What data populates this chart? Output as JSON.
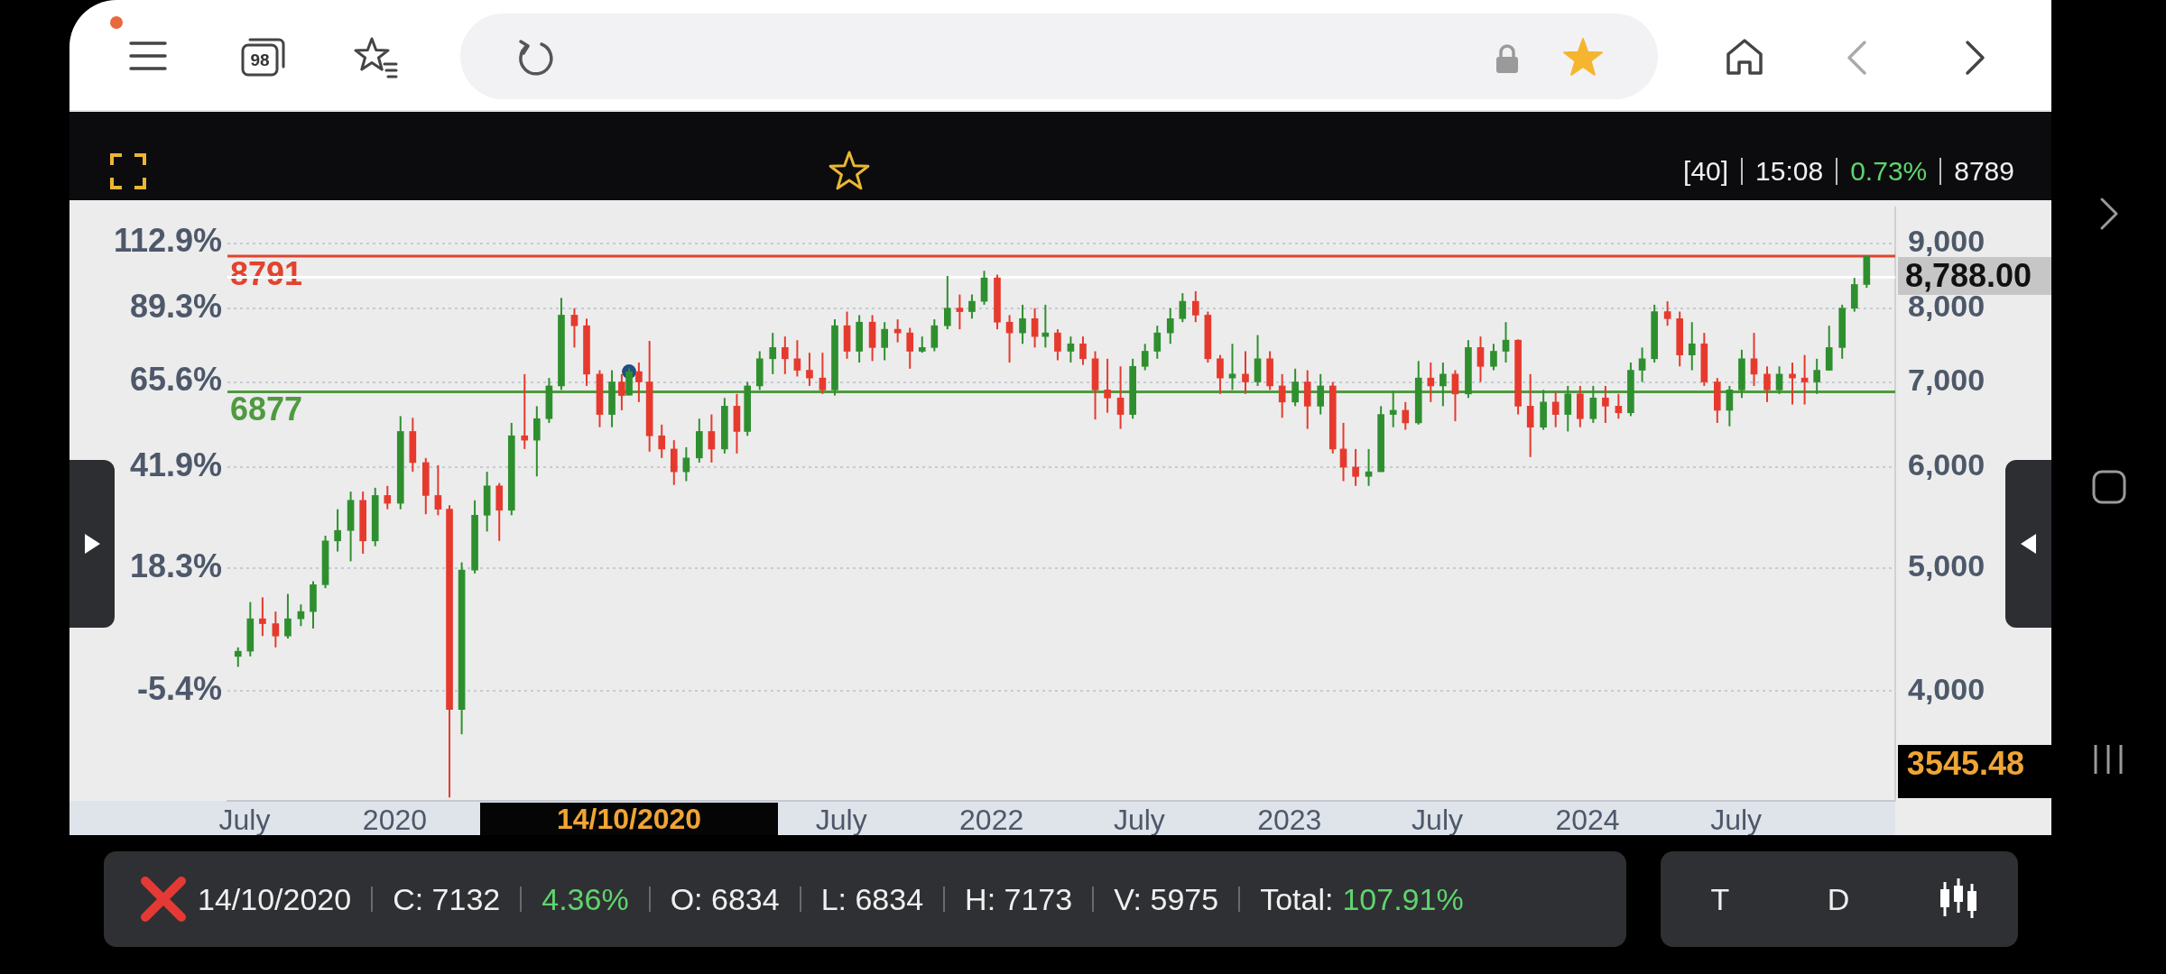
{
  "chart_data": {
    "type": "candlestick",
    "x": [
      "2019-06-23",
      "2019-07-08",
      "2019-07-23",
      "2019-08-08",
      "2019-08-23",
      "2019-09-08",
      "2019-09-23",
      "2019-10-08",
      "2019-10-23",
      "2019-11-08",
      "2019-11-23",
      "2019-12-08",
      "2019-12-23",
      "2020-01-08",
      "2020-01-23",
      "2020-02-08",
      "2020-02-23",
      "2020-03-08",
      "2020-03-23",
      "2020-04-08",
      "2020-04-23",
      "2020-05-08",
      "2020-05-23",
      "2020-06-08",
      "2020-06-23",
      "2020-07-08",
      "2020-07-23",
      "2020-08-08",
      "2020-08-23",
      "2020-09-08",
      "2020-09-23",
      "2020-10-05",
      "2020-10-14",
      "2020-10-26",
      "2020-11-08",
      "2020-11-23",
      "2020-12-08",
      "2020-12-23",
      "2021-01-08",
      "2021-01-23",
      "2021-02-08",
      "2021-02-23",
      "2021-03-08",
      "2021-03-23",
      "2021-04-08",
      "2021-04-23",
      "2021-05-08",
      "2021-05-23",
      "2021-06-08",
      "2021-06-23",
      "2021-07-08",
      "2021-07-23",
      "2021-08-08",
      "2021-08-23",
      "2021-09-08",
      "2021-09-23",
      "2021-10-08",
      "2021-10-23",
      "2021-11-08",
      "2021-11-23",
      "2021-12-08",
      "2021-12-23",
      "2022-01-08",
      "2022-01-23",
      "2022-02-08",
      "2022-02-23",
      "2022-03-08",
      "2022-03-23",
      "2022-04-08",
      "2022-04-23",
      "2022-05-08",
      "2022-05-23",
      "2022-06-08",
      "2022-06-23",
      "2022-07-08",
      "2022-07-23",
      "2022-08-08",
      "2022-08-23",
      "2022-09-08",
      "2022-09-23",
      "2022-10-08",
      "2022-10-23",
      "2022-11-08",
      "2022-11-23",
      "2022-12-08",
      "2022-12-23",
      "2023-01-08",
      "2023-01-23",
      "2023-02-08",
      "2023-02-23",
      "2023-03-08",
      "2023-03-23",
      "2023-04-08",
      "2023-04-23",
      "2023-05-08",
      "2023-05-23",
      "2023-06-08",
      "2023-06-23",
      "2023-07-08",
      "2023-07-23",
      "2023-08-08",
      "2023-08-23",
      "2023-09-08",
      "2023-09-23",
      "2023-10-08",
      "2023-10-23",
      "2023-11-08",
      "2023-11-23",
      "2023-12-08",
      "2023-12-23",
      "2024-01-08",
      "2024-01-23",
      "2024-02-08",
      "2024-02-23",
      "2024-03-08",
      "2024-03-23",
      "2024-04-08",
      "2024-04-23",
      "2024-05-08",
      "2024-05-23",
      "2024-06-08",
      "2024-06-23",
      "2024-07-08",
      "2024-07-23",
      "2024-08-08",
      "2024-08-23",
      "2024-09-08",
      "2024-09-23",
      "2024-10-08",
      "2024-10-23",
      "2024-11-08",
      "2024-11-23",
      "2024-12-08"
    ],
    "ohlc": [
      [
        4260,
        4330,
        4180,
        4300
      ],
      [
        4300,
        4700,
        4260,
        4560
      ],
      [
        4560,
        4740,
        4420,
        4520
      ],
      [
        4520,
        4620,
        4330,
        4420
      ],
      [
        4420,
        4770,
        4400,
        4560
      ],
      [
        4560,
        4680,
        4500,
        4620
      ],
      [
        4620,
        4880,
        4480,
        4850
      ],
      [
        4850,
        5300,
        4820,
        5250
      ],
      [
        5250,
        5560,
        5150,
        5350
      ],
      [
        5350,
        5740,
        5060,
        5650
      ],
      [
        5650,
        5740,
        5130,
        5250
      ],
      [
        5250,
        5780,
        5200,
        5700
      ],
      [
        5700,
        5800,
        5560,
        5620
      ],
      [
        5620,
        6580,
        5560,
        6400
      ],
      [
        6400,
        6560,
        5950,
        6050
      ],
      [
        6050,
        6100,
        5510,
        5700
      ],
      [
        5700,
        6020,
        5500,
        5560
      ],
      [
        5560,
        5600,
        3300,
        3870
      ],
      [
        3870,
        5050,
        3700,
        4980
      ],
      [
        4980,
        5650,
        4950,
        5500
      ],
      [
        5500,
        5950,
        5340,
        5800
      ],
      [
        5800,
        5830,
        5250,
        5550
      ],
      [
        5550,
        6500,
        5500,
        6350
      ],
      [
        6350,
        7100,
        6200,
        6300
      ],
      [
        6300,
        6700,
        5900,
        6550
      ],
      [
        6550,
        7050,
        6500,
        6950
      ],
      [
        6950,
        8150,
        6900,
        7900
      ],
      [
        7900,
        8000,
        7450,
        7750
      ],
      [
        7750,
        7850,
        6950,
        7100
      ],
      [
        7100,
        7150,
        6450,
        6600
      ],
      [
        6600,
        7150,
        6450,
        7000
      ],
      [
        7000,
        7100,
        6650,
        6830
      ],
      [
        6834,
        7173,
        6834,
        7132
      ],
      [
        7132,
        7250,
        6750,
        7000
      ],
      [
        7000,
        7540,
        6170,
        6350
      ],
      [
        6350,
        6480,
        6100,
        6200
      ],
      [
        6200,
        6300,
        5810,
        5950
      ],
      [
        5950,
        6220,
        5850,
        6100
      ],
      [
        6100,
        6550,
        6050,
        6400
      ],
      [
        6400,
        6600,
        6050,
        6200
      ],
      [
        6200,
        6800,
        6150,
        6700
      ],
      [
        6700,
        6850,
        6150,
        6400
      ],
      [
        6400,
        7000,
        6350,
        6950
      ],
      [
        6950,
        7400,
        6900,
        7300
      ],
      [
        7300,
        7650,
        7100,
        7450
      ],
      [
        7450,
        7600,
        7100,
        7300
      ],
      [
        7300,
        7550,
        7070,
        7150
      ],
      [
        7150,
        7380,
        6950,
        7050
      ],
      [
        7050,
        7380,
        6850,
        6900
      ],
      [
        6900,
        7840,
        6830,
        7750
      ],
      [
        7750,
        7950,
        7300,
        7400
      ],
      [
        7400,
        7900,
        7250,
        7800
      ],
      [
        7800,
        7900,
        7270,
        7450
      ],
      [
        7450,
        7800,
        7280,
        7700
      ],
      [
        7700,
        7840,
        7520,
        7650
      ],
      [
        7650,
        7720,
        7170,
        7400
      ],
      [
        7400,
        7600,
        7380,
        7450
      ],
      [
        7450,
        7840,
        7400,
        7750
      ],
      [
        7750,
        8480,
        7700,
        8000
      ],
      [
        8000,
        8200,
        7700,
        7950
      ],
      [
        7950,
        8200,
        7850,
        8100
      ],
      [
        8100,
        8560,
        8050,
        8450
      ],
      [
        8450,
        8500,
        7700,
        7800
      ],
      [
        7800,
        7900,
        7250,
        7650
      ],
      [
        7650,
        8050,
        7500,
        7850
      ],
      [
        7850,
        8000,
        7450,
        7600
      ],
      [
        7600,
        8050,
        7450,
        7650
      ],
      [
        7650,
        7700,
        7280,
        7400
      ],
      [
        7400,
        7600,
        7250,
        7500
      ],
      [
        7500,
        7600,
        7220,
        7300
      ],
      [
        7300,
        7400,
        6540,
        6900
      ],
      [
        6900,
        7300,
        6620,
        6800
      ],
      [
        6800,
        7200,
        6430,
        6600
      ],
      [
        6600,
        7300,
        6550,
        7200
      ],
      [
        7200,
        7500,
        7150,
        7400
      ],
      [
        7400,
        7750,
        7300,
        7650
      ],
      [
        7650,
        8000,
        7500,
        7850
      ],
      [
        7850,
        8220,
        7800,
        8100
      ],
      [
        8100,
        8250,
        7800,
        7900
      ],
      [
        7900,
        7950,
        7250,
        7300
      ],
      [
        7300,
        7350,
        6850,
        7050
      ],
      [
        7050,
        7500,
        6900,
        7100
      ],
      [
        7100,
        7400,
        6850,
        7000
      ],
      [
        7000,
        7620,
        6950,
        7300
      ],
      [
        7300,
        7400,
        6900,
        6950
      ],
      [
        6950,
        7100,
        6560,
        6750
      ],
      [
        6750,
        7170,
        6700,
        7000
      ],
      [
        7000,
        7150,
        6430,
        6700
      ],
      [
        6700,
        7100,
        6600,
        6950
      ],
      [
        6950,
        7000,
        6150,
        6200
      ],
      [
        6200,
        6500,
        5850,
        6000
      ],
      [
        6000,
        6200,
        5800,
        5900
      ],
      [
        5900,
        6200,
        5800,
        5950
      ],
      [
        5950,
        6700,
        5950,
        6600
      ],
      [
        6600,
        6890,
        6450,
        6650
      ],
      [
        6650,
        6750,
        6420,
        6500
      ],
      [
        6500,
        7270,
        6480,
        7050
      ],
      [
        7050,
        7250,
        6750,
        6950
      ],
      [
        6950,
        7250,
        6700,
        7100
      ],
      [
        7100,
        7150,
        6520,
        6850
      ],
      [
        6850,
        7550,
        6800,
        7450
      ],
      [
        7450,
        7600,
        7000,
        7200
      ],
      [
        7200,
        7500,
        7150,
        7400
      ],
      [
        7400,
        7800,
        7250,
        7550
      ],
      [
        7550,
        7560,
        6600,
        6700
      ],
      [
        6700,
        7100,
        6110,
        6450
      ],
      [
        6450,
        6900,
        6420,
        6750
      ],
      [
        6750,
        6880,
        6450,
        6600
      ],
      [
        6600,
        6950,
        6400,
        6850
      ],
      [
        6850,
        6950,
        6450,
        6550
      ],
      [
        6550,
        6950,
        6500,
        6800
      ],
      [
        6800,
        6950,
        6500,
        6700
      ],
      [
        6700,
        6850,
        6550,
        6620
      ],
      [
        6620,
        7250,
        6580,
        7150
      ],
      [
        7150,
        7450,
        7000,
        7300
      ],
      [
        7300,
        8050,
        7250,
        7950
      ],
      [
        7950,
        8100,
        7750,
        7850
      ],
      [
        7850,
        7950,
        7200,
        7350
      ],
      [
        7350,
        7800,
        7150,
        7500
      ],
      [
        7500,
        7650,
        6950,
        7000
      ],
      [
        7000,
        7050,
        6500,
        6650
      ],
      [
        6650,
        6950,
        6460,
        6900
      ],
      [
        6900,
        7420,
        6800,
        7300
      ],
      [
        7300,
        7650,
        6950,
        7100
      ],
      [
        7100,
        7200,
        6750,
        6900
      ],
      [
        6900,
        7200,
        6850,
        7100
      ],
      [
        7100,
        7250,
        6720,
        7050
      ],
      [
        7050,
        7350,
        6720,
        7000
      ],
      [
        7000,
        7300,
        6850,
        7150
      ],
      [
        7150,
        7750,
        7150,
        7450
      ],
      [
        7450,
        8050,
        7300,
        8000
      ],
      [
        8000,
        8450,
        7950,
        8350
      ],
      [
        8350,
        8791,
        8300,
        8788
      ]
    ],
    "colors": [
      "#2f8f2f",
      "#2f8f2f",
      "#e63a2e",
      "#e63a2e",
      "#2f8f2f",
      "#2f8f2f",
      "#2f8f2f",
      "#2f8f2f",
      "#2f8f2f",
      "#2f8f2f",
      "#e63a2e",
      "#2f8f2f",
      "#e63a2e",
      "#2f8f2f",
      "#e63a2e",
      "#e63a2e",
      "#e63a2e",
      "#e63a2e",
      "#2f8f2f",
      "#2f8f2f",
      "#2f8f2f",
      "#e63a2e",
      "#2f8f2f",
      "#e63a2e",
      "#2f8f2f",
      "#2f8f2f",
      "#2f8f2f",
      "#e63a2e",
      "#e63a2e",
      "#e63a2e",
      "#2f8f2f",
      "#e63a2e",
      "#2f8f2f",
      "#e63a2e",
      "#e63a2e",
      "#e63a2e",
      "#e63a2e",
      "#2f8f2f",
      "#2f8f2f",
      "#e63a2e",
      "#2f8f2f",
      "#e63a2e",
      "#2f8f2f",
      "#2f8f2f",
      "#2f8f2f",
      "#e63a2e",
      "#e63a2e",
      "#e63a2e",
      "#e63a2e",
      "#2f8f2f",
      "#e63a2e",
      "#2f8f2f",
      "#e63a2e",
      "#2f8f2f",
      "#e63a2e",
      "#e63a2e",
      "#2f8f2f",
      "#2f8f2f",
      "#2f8f2f",
      "#e63a2e",
      "#2f8f2f",
      "#2f8f2f",
      "#e63a2e",
      "#e63a2e",
      "#2f8f2f",
      "#e63a2e",
      "#2f8f2f",
      "#e63a2e",
      "#2f8f2f",
      "#e63a2e",
      "#e63a2e",
      "#e63a2e",
      "#e63a2e",
      "#2f8f2f",
      "#2f8f2f",
      "#2f8f2f",
      "#2f8f2f",
      "#2f8f2f",
      "#e63a2e",
      "#e63a2e",
      "#e63a2e",
      "#2f8f2f",
      "#e63a2e",
      "#2f8f2f",
      "#e63a2e",
      "#e63a2e",
      "#2f8f2f",
      "#e63a2e",
      "#2f8f2f",
      "#e63a2e",
      "#e63a2e",
      "#e63a2e",
      "#2f8f2f",
      "#2f8f2f",
      "#2f8f2f",
      "#e63a2e",
      "#2f8f2f",
      "#e63a2e",
      "#2f8f2f",
      "#e63a2e",
      "#2f8f2f",
      "#e63a2e",
      "#2f8f2f",
      "#2f8f2f",
      "#e63a2e",
      "#e63a2e",
      "#2f8f2f",
      "#e63a2e",
      "#2f8f2f",
      "#e63a2e",
      "#2f8f2f",
      "#e63a2e",
      "#e63a2e",
      "#2f8f2f",
      "#2f8f2f",
      "#2f8f2f",
      "#e63a2e",
      "#e63a2e",
      "#2f8f2f",
      "#e63a2e",
      "#e63a2e",
      "#2f8f2f",
      "#2f8f2f",
      "#e63a2e",
      "#e63a2e",
      "#2f8f2f",
      "#e63a2e",
      "#e63a2e",
      "#2f8f2f",
      "#2f8f2f",
      "#2f8f2f",
      "#2f8f2f",
      "#2f8f2f"
    ],
    "series": [
      {
        "type": "scatter",
        "x": [
          "2020-10-14"
        ],
        "values": [
          7132
        ],
        "color": "#1f4e80"
      }
    ],
    "marker": "circle",
    "xlim": [
      "2019-06-10",
      "2025-01-12"
    ],
    "xticks": [
      {
        "value": "2019-07-01",
        "label": "July"
      },
      {
        "value": "2020-01-01",
        "label": "2020"
      },
      {
        "value": "2021-07-01",
        "label": "July"
      },
      {
        "value": "2022-01-01",
        "label": "2022"
      },
      {
        "value": "2022-07-01",
        "label": "July"
      },
      {
        "value": "2023-01-01",
        "label": "2023"
      },
      {
        "value": "2023-07-01",
        "label": "July"
      },
      {
        "value": "2024-01-01",
        "label": "2024"
      },
      {
        "value": "2024-07-01",
        "label": "July"
      }
    ],
    "ylim": [
      3280,
      9600
    ],
    "yticks": [
      {
        "value": 4000,
        "label": "4,000"
      },
      {
        "value": 5000,
        "label": "5,000"
      },
      {
        "value": 6000,
        "label": "6,000"
      },
      {
        "value": 7000,
        "label": "7,000"
      },
      {
        "value": 8000,
        "label": "8,000"
      },
      {
        "value": 9000,
        "label": "9,000"
      }
    ],
    "log": true,
    "grid": "y",
    "ref_lines": [
      {
        "axis": "y",
        "value": 8791,
        "label": "8791",
        "color": "#e2432f"
      },
      {
        "axis": "y",
        "value": 6877,
        "label": "6877",
        "color": "#4f9a3f"
      },
      {
        "axis": "y",
        "value": 8460,
        "color": "#ffffff"
      }
    ],
    "annotations": [
      "98",
      "[40]",
      "15:08",
      "0.73%",
      "8789",
      "14/10/2020",
      "C: 7132",
      "4.36%",
      "O: 6834",
      "L: 6834",
      "H: 7173",
      "V: 5975",
      "Total:",
      "107.91%",
      "T",
      "D",
      "8,788.00",
      "3545.48",
      "14/10/2020",
      "-5.4%",
      "18.3%",
      "41.9%",
      "65.6%",
      "89.3%",
      "112.9%"
    ]
  }
}
